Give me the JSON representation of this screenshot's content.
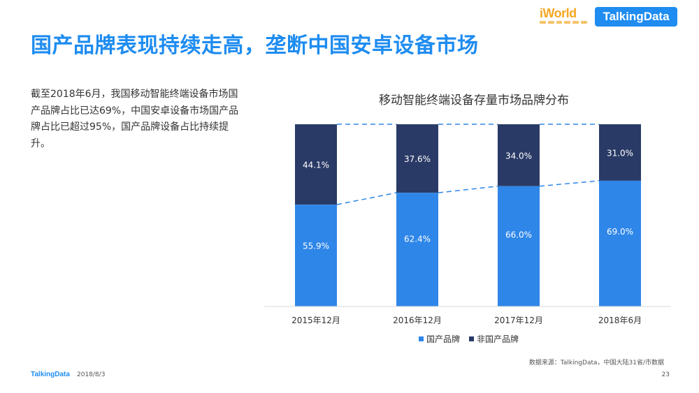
{
  "header": {
    "title": "国产品牌表现持续走高，垄断中国安卓设备市场",
    "logo_iworld": "iWorld",
    "logo_talkingdata": "TalkingData"
  },
  "summary": {
    "text": "截至2018年6月，我国移动智能终端设备市场国产品牌占比已达69%，中国安卓设备市场国产品牌占比已超过95%，国产品牌设备占比持续提升。"
  },
  "colors": {
    "accent": "#1e8cf0",
    "domestic": "#2e86e8",
    "non_domestic": "#2a3a66"
  },
  "chart_data": {
    "type": "bar",
    "stacked": true,
    "title": "移动智能终端设备存量市场品牌分布",
    "categories": [
      "2015年12月",
      "2016年12月",
      "2017年12月",
      "2018年6月"
    ],
    "series": [
      {
        "name": "国产品牌",
        "values": [
          55.9,
          62.4,
          66.0,
          69.0
        ],
        "labels": [
          "55.9%",
          "62.4%",
          "66.0%",
          "69.0%"
        ],
        "color": "#2e86e8"
      },
      {
        "name": "非国产品牌",
        "values": [
          44.1,
          37.6,
          34.0,
          31.0
        ],
        "labels": [
          "44.1%",
          "37.6%",
          "34.0%",
          "31.0%"
        ],
        "color": "#2a3a66"
      }
    ],
    "ylim": [
      0,
      100
    ],
    "legend_position": "bottom",
    "trend_lines": "dashed",
    "grid": false
  },
  "footer": {
    "source": "数据来源：TalkingData，中国大陆31省/市数据",
    "brand": "TalkingData",
    "date": "2018/8/3",
    "page": "23"
  }
}
